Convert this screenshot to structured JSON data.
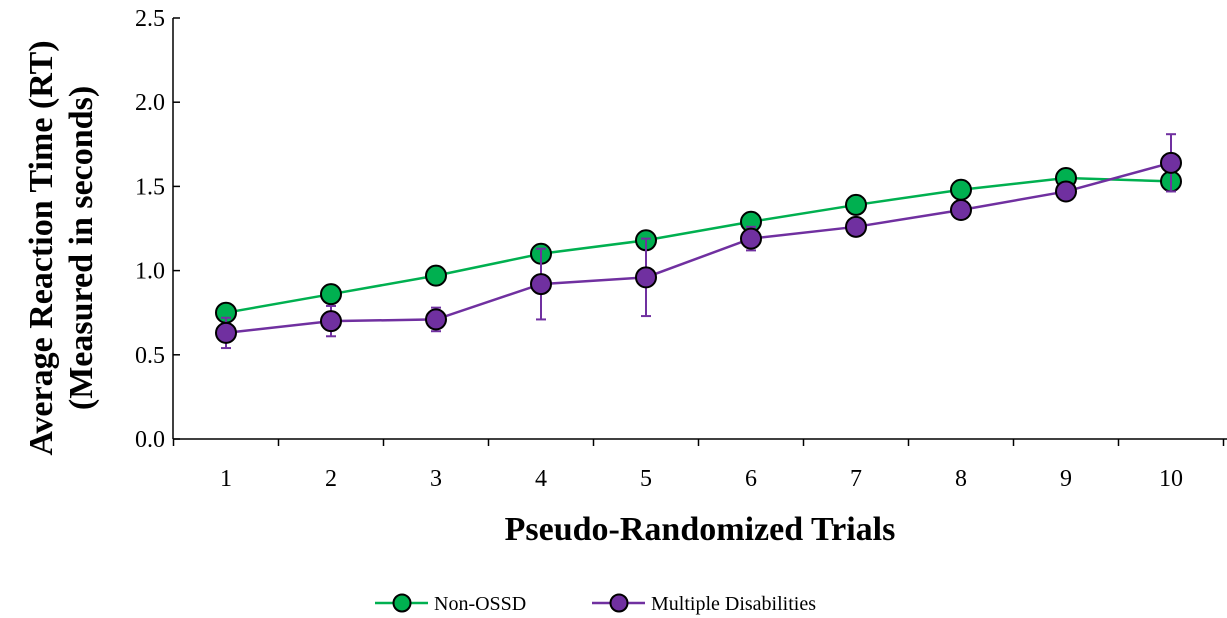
{
  "chart_data": {
    "type": "line",
    "title": "",
    "xlabel": "Pseudo-Randomized Trials",
    "ylabel_lines": [
      "Average Reaction Time (RT)",
      "(Measured in seconds)"
    ],
    "x": [
      1,
      2,
      3,
      4,
      5,
      6,
      7,
      8,
      9,
      10
    ],
    "x_tick_labels": [
      "1",
      "2",
      "3",
      "4",
      "5",
      "6",
      "7",
      "8",
      "9",
      "10"
    ],
    "ylim": [
      0,
      2.5
    ],
    "y_ticks": [
      0.0,
      0.5,
      1.0,
      1.5,
      2.0,
      2.5
    ],
    "y_tick_labels": [
      "0.0",
      "0.5",
      "1.0",
      "1.5",
      "2.0",
      "2.5"
    ],
    "grid": false,
    "legend_position": "bottom-center",
    "series": [
      {
        "name": "Non-OSSD",
        "color": "#00b050",
        "line_color": "#00b050",
        "values": [
          0.75,
          0.86,
          0.97,
          1.1,
          1.18,
          1.29,
          1.39,
          1.48,
          1.55,
          1.53
        ],
        "error": [
          0.01,
          0.01,
          0.01,
          0.01,
          0.01,
          0.02,
          0.02,
          0.01,
          0.02,
          0.05
        ]
      },
      {
        "name": "Multiple Disabilities",
        "color": "#7030a0",
        "line_color": "#7030a0",
        "values": [
          0.63,
          0.7,
          0.71,
          0.92,
          0.96,
          1.19,
          1.26,
          1.36,
          1.47,
          1.64
        ],
        "error": [
          0.09,
          0.09,
          0.07,
          0.21,
          0.23,
          0.07,
          0.03,
          0.02,
          0.03,
          0.17
        ]
      }
    ]
  }
}
